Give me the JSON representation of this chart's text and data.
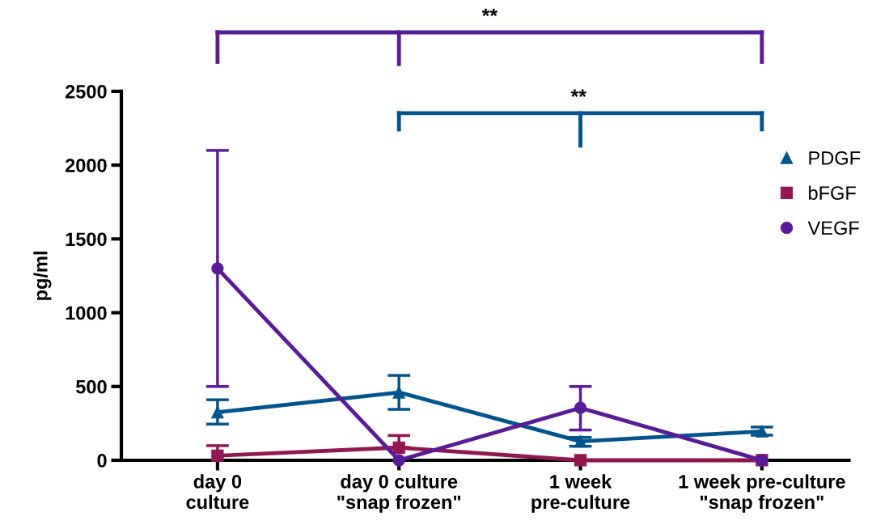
{
  "chart_data": {
    "type": "line",
    "ylabel": "pg/ml",
    "categories": [
      "day 0\nculture",
      "day 0 culture\n\"snap frozen\"",
      "1 week\npre-culture",
      "1 week pre-culture\n\"snap frozen\""
    ],
    "series": [
      {
        "name": "PDGF",
        "color": "#00558f",
        "marker": "triangle",
        "values": [
          325,
          460,
          128,
          196
        ],
        "errors": [
          [
            245,
            410
          ],
          [
            345,
            575
          ],
          [
            95,
            155
          ],
          [
            170,
            225
          ]
        ]
      },
      {
        "name": "bFGF",
        "color": "#931650",
        "marker": "square",
        "values": [
          31,
          86,
          0,
          0
        ],
        "errors": [
          [
            0,
            99
          ],
          [
            86,
            168
          ],
          null,
          null
        ]
      },
      {
        "name": "VEGF",
        "color": "#5a1b9b",
        "marker": "circle",
        "values": [
          1300,
          0,
          355,
          0
        ],
        "errors": [
          [
            500,
            2100
          ],
          null,
          [
            205,
            500
          ],
          null
        ]
      }
    ],
    "annotations": [
      "**",
      "**"
    ],
    "ylim": [
      0,
      2500
    ],
    "yticks": [
      0,
      500,
      1000,
      1500,
      2000,
      2500
    ],
    "grid": false,
    "legend": "right",
    "line_style": "solid"
  }
}
